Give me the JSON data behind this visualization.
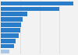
{
  "values": [
    74500,
    60000,
    27200,
    22500,
    21000,
    20000,
    18000,
    15000,
    13500,
    9000
  ],
  "bar_colors": [
    "#2a7dc9",
    "#2a7dc9",
    "#2a7dc9",
    "#2a7dc9",
    "#2a7dc9",
    "#2a7dc9",
    "#2a7dc9",
    "#2a7dc9",
    "#2a7dc9",
    "#a8c8e8"
  ],
  "background_color": "#f2f2f2",
  "plot_background": "#f2f2f2",
  "grid_color": "#d9d9d9"
}
